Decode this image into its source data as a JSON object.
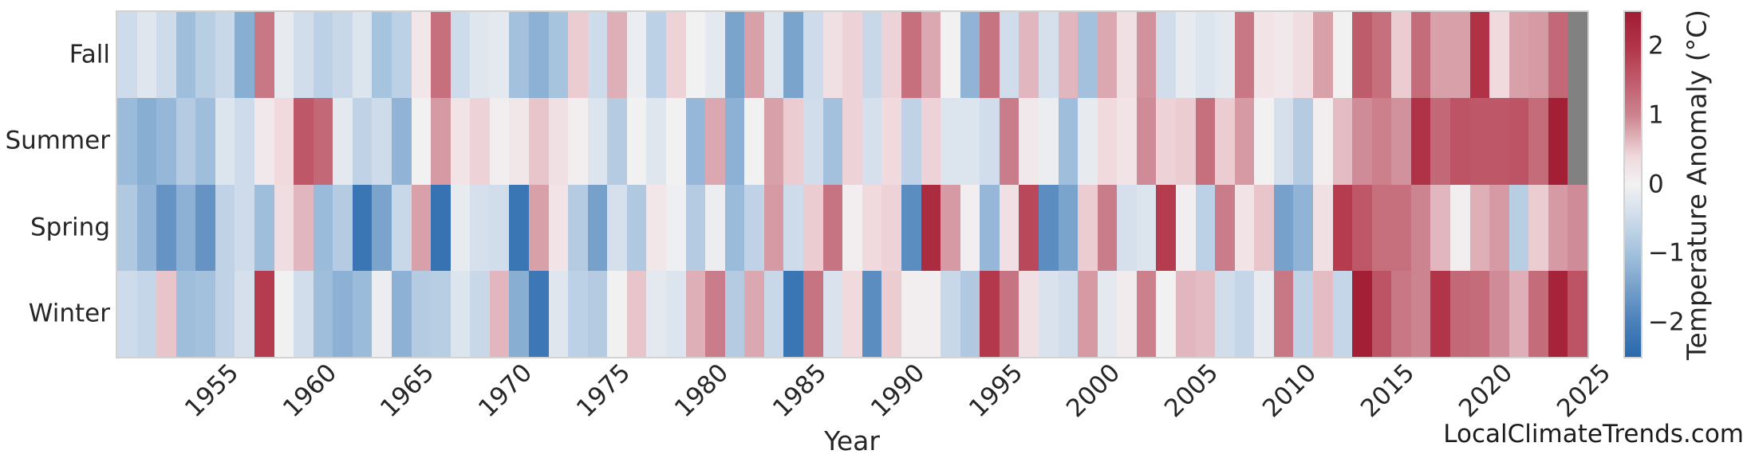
{
  "watermark": "LocalClimateTrends.com",
  "colors": {
    "background": "#ffffff",
    "text": "#262626",
    "spine": "#d2d2d2",
    "missing": "#818181"
  },
  "chart_data": {
    "type": "heatmap",
    "title": "",
    "xlabel": "Year",
    "ylabel": "",
    "rows": [
      "Fall",
      "Summer",
      "Spring",
      "Winter"
    ],
    "years": [
      1951,
      1952,
      1953,
      1954,
      1955,
      1956,
      1957,
      1958,
      1959,
      1960,
      1961,
      1962,
      1963,
      1964,
      1965,
      1966,
      1967,
      1968,
      1969,
      1970,
      1971,
      1972,
      1973,
      1974,
      1975,
      1976,
      1977,
      1978,
      1979,
      1980,
      1981,
      1982,
      1983,
      1984,
      1985,
      1986,
      1987,
      1988,
      1989,
      1990,
      1991,
      1992,
      1993,
      1994,
      1995,
      1996,
      1997,
      1998,
      1999,
      2000,
      2001,
      2002,
      2003,
      2004,
      2005,
      2006,
      2007,
      2008,
      2009,
      2010,
      2011,
      2012,
      2013,
      2014,
      2015,
      2016,
      2017,
      2018,
      2019,
      2020,
      2021,
      2022,
      2023,
      2024,
      2025
    ],
    "xticks": [
      1955,
      1960,
      1965,
      1970,
      1975,
      1980,
      1985,
      1990,
      1995,
      2000,
      2005,
      2010,
      2015,
      2020,
      2025
    ],
    "series": [
      {
        "name": "Fall",
        "values": [
          -0.5,
          -0.25,
          -0.5,
          -1.05,
          -0.75,
          -0.55,
          -1.3,
          1.15,
          -0.15,
          -0.45,
          -0.7,
          -0.55,
          -0.3,
          -0.95,
          -0.7,
          0.2,
          1.25,
          -0.5,
          -0.25,
          -0.2,
          -1.0,
          -1.25,
          -0.95,
          0.5,
          -0.5,
          0.7,
          -0.1,
          -0.7,
          0.45,
          0.0,
          -0.2,
          -1.45,
          0.8,
          -0.25,
          -1.45,
          -0.5,
          0.3,
          0.45,
          -0.55,
          0.45,
          1.25,
          0.75,
          0.0,
          -1.2,
          1.2,
          -0.45,
          0.65,
          -0.4,
          0.65,
          -1.0,
          0.75,
          0.3,
          0.9,
          -0.45,
          -0.15,
          -0.3,
          -0.2,
          1.15,
          0.25,
          0.15,
          0.35,
          0.8,
          0.0,
          1.5,
          1.25,
          0.5,
          1.3,
          0.8,
          0.8,
          2.05,
          0.4,
          0.8,
          0.85,
          1.35,
          null
        ]
      },
      {
        "name": "Summer",
        "values": [
          -1.1,
          -1.3,
          -1.15,
          -0.8,
          -1.05,
          -0.3,
          -0.5,
          0.15,
          0.4,
          1.55,
          1.35,
          -0.2,
          -0.65,
          -0.5,
          -1.2,
          0.0,
          0.85,
          0.25,
          0.45,
          0.05,
          0.2,
          0.55,
          0.3,
          0.05,
          -0.3,
          -0.8,
          0.0,
          -0.25,
          0.0,
          -1.15,
          0.75,
          -1.25,
          0.0,
          0.8,
          0.5,
          -0.45,
          -1.0,
          0.45,
          -0.4,
          0.4,
          -0.65,
          0.45,
          -0.3,
          -0.3,
          -0.45,
          1.1,
          0.15,
          -0.1,
          -1.05,
          -0.15,
          0.4,
          0.25,
          0.95,
          0.45,
          0.5,
          1.25,
          0.5,
          0.85,
          0.0,
          -0.4,
          -0.8,
          0.05,
          0.6,
          0.95,
          1.05,
          0.9,
          2.05,
          1.35,
          1.6,
          1.55,
          1.55,
          1.6,
          1.3,
          2.45,
          null
        ]
      },
      {
        "name": "Spring",
        "values": [
          -0.85,
          -1.2,
          -1.7,
          -1.25,
          -1.7,
          -0.65,
          -0.5,
          -1.05,
          0.35,
          0.65,
          -1.1,
          -0.8,
          -2.25,
          -1.45,
          -0.55,
          0.8,
          -2.3,
          -0.15,
          -0.4,
          -0.45,
          -2.25,
          0.8,
          0.25,
          -0.8,
          -1.5,
          -0.4,
          -0.85,
          0.2,
          -0.05,
          -0.8,
          -0.1,
          -1.1,
          -0.65,
          0.85,
          -0.5,
          0.5,
          1.2,
          0.05,
          0.4,
          0.45,
          -1.8,
          2.2,
          0.85,
          0.05,
          -1.15,
          0.3,
          1.75,
          -1.8,
          -1.45,
          0.5,
          1.1,
          -0.4,
          -0.3,
          1.9,
          0.05,
          -0.7,
          1.1,
          0.25,
          0.55,
          -1.5,
          -1.2,
          0.3,
          1.9,
          1.55,
          1.25,
          1.25,
          1.0,
          0.65,
          0.05,
          0.7,
          0.85,
          -0.75,
          0.5,
          0.85,
          0.95
        ]
      },
      {
        "name": "Winter",
        "values": [
          -0.5,
          -0.6,
          0.55,
          -1.05,
          -1.0,
          -0.65,
          -0.4,
          1.9,
          0.0,
          -0.45,
          -1.05,
          -1.25,
          -1.1,
          -0.1,
          -1.25,
          -0.8,
          -0.75,
          -0.3,
          -0.55,
          0.65,
          -1.3,
          -2.2,
          -0.25,
          -0.7,
          -0.8,
          0.0,
          0.55,
          -0.2,
          -0.3,
          0.7,
          1.1,
          -0.8,
          0.75,
          -0.55,
          -2.25,
          1.2,
          -0.35,
          0.4,
          -1.8,
          0.5,
          0.05,
          0.05,
          -0.55,
          -0.85,
          1.95,
          1.2,
          0.3,
          -0.35,
          -0.45,
          0.85,
          -0.2,
          0.1,
          1.05,
          0.0,
          0.65,
          0.6,
          -0.45,
          -0.6,
          -0.15,
          1.15,
          -0.65,
          0.6,
          -0.6,
          2.45,
          1.6,
          1.15,
          1.0,
          2.0,
          1.35,
          1.3,
          0.95,
          0.7,
          1.3,
          2.35,
          1.6
        ]
      }
    ],
    "colorbar": {
      "label": "Temperature Anomaly (°C)",
      "vmin": -2.5,
      "vmax": 2.5,
      "ticks": [
        {
          "label": "2",
          "value": 2
        },
        {
          "label": "1",
          "value": 1
        },
        {
          "label": "0",
          "value": 0
        },
        {
          "label": "−1",
          "value": -1
        },
        {
          "label": "−2",
          "value": -2
        }
      ]
    },
    "colormap": {
      "missing": "#818181",
      "stops": [
        {
          "v": -2.5,
          "c": "#2a69ae"
        },
        {
          "v": -2.0,
          "c": "#4a80b9"
        },
        {
          "v": -1.0,
          "c": "#a3c1dd"
        },
        {
          "v": -0.4,
          "c": "#d5e0ec"
        },
        {
          "v": 0.0,
          "c": "#f2f1f2"
        },
        {
          "v": 0.4,
          "c": "#f0dade"
        },
        {
          "v": 1.0,
          "c": "#cc8490"
        },
        {
          "v": 2.0,
          "c": "#b23448"
        },
        {
          "v": 2.5,
          "c": "#a01d33"
        }
      ]
    },
    "legend": "colorbar-right",
    "grid": false
  }
}
